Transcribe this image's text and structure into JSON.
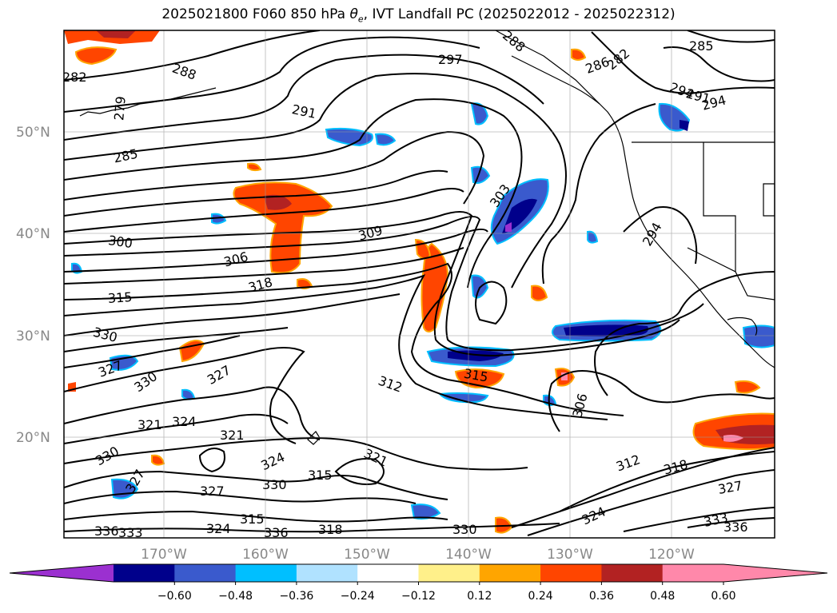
{
  "title": {
    "prefix": "2025021800 F060 850 hPa ",
    "theta_symbol": "θ",
    "theta_sub": "e",
    "suffix": ", IVT Landfall PC (2025022012 - 2025022312)"
  },
  "lat_labels": [
    "50°N",
    "40°N",
    "30°N",
    "20°N"
  ],
  "lon_labels": [
    "170°W",
    "160°W",
    "150°W",
    "140°W",
    "130°W",
    "120°W"
  ],
  "colorbar": {
    "colors": [
      "#9b30d0",
      "#00008b",
      "#3a5acd",
      "#00bfff",
      "#b0e2ff",
      "#ffffff",
      "#fff08a",
      "#ffa500",
      "#ff4500",
      "#b22222",
      "#ff88aa",
      "#ff88aa"
    ],
    "labels": [
      "−0.60",
      "−0.48",
      "−0.36",
      "−0.24",
      "−0.12",
      "0.12",
      "0.24",
      "0.36",
      "0.48",
      "0.60"
    ]
  },
  "contour_labels": [
    "282",
    "288",
    "279",
    "285",
    "291",
    "297",
    "288",
    "286",
    "282",
    "285",
    "294",
    "291",
    "294",
    "300",
    "309",
    "303",
    "306",
    "318",
    "294",
    "315",
    "330",
    "327",
    "330",
    "327",
    "315",
    "312",
    "306",
    "324",
    "321",
    "321",
    "324",
    "327",
    "315",
    "330",
    "321",
    "327",
    "330",
    "330",
    "312",
    "318",
    "327",
    "333",
    "336",
    "324",
    "324",
    "315",
    "336",
    "318",
    "333",
    "336"
  ]
}
